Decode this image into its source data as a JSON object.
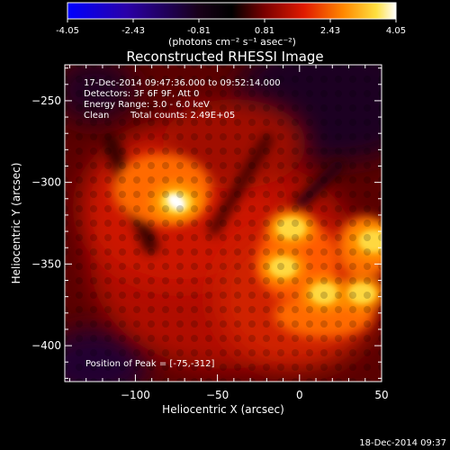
{
  "chart_data": {
    "type": "heatmap",
    "title": "Reconstructed RHESSI Image",
    "colorbar": {
      "ticks": [
        "-4.05",
        "-2.43",
        "-0.81",
        "0.81",
        "2.43",
        "4.05"
      ],
      "min": -4.05,
      "max": 4.05,
      "unit_label": "(photons cm⁻² s⁻¹ asec⁻²)",
      "colormap": "rhessi-blue-black-red-yellow-white"
    },
    "annotations": {
      "time_range": "17-Dec-2014 09:47:36.000 to 09:52:14.000",
      "detectors": "Detectors: 3F 6F 9F, Att 0",
      "energy_range": "Energy Range: 3.0 - 6.0 keV",
      "method": "Clean",
      "total_counts": "Total counts: 2.49E+05",
      "peak_position": "Position of Peak = [-75,-312]"
    },
    "xlabel": "Heliocentric X (arcsec)",
    "ylabel": "Heliocentric Y (arcsec)",
    "xlim": [
      -143,
      50
    ],
    "ylim": [
      -422,
      -228
    ],
    "xticks": [
      -100,
      -50,
      0,
      50
    ],
    "yticks": [
      -250,
      -300,
      -350,
      -400
    ],
    "xtick_labels": [
      "−100",
      "−50",
      "0",
      "50"
    ],
    "ytick_labels": [
      "−250",
      "−300",
      "−350",
      "−400"
    ],
    "sources": [
      {
        "x": -75,
        "y": -312,
        "level": 1.0
      },
      {
        "x": -5,
        "y": -328,
        "level": 0.8
      },
      {
        "x": 45,
        "y": -336,
        "level": 0.85
      },
      {
        "x": -10,
        "y": -352,
        "level": 0.7
      },
      {
        "x": 15,
        "y": -368,
        "level": 0.75
      },
      {
        "x": 38,
        "y": -368,
        "level": 0.7
      }
    ],
    "grid": false
  },
  "footer": {
    "timestamp": "18-Dec-2014 09:37"
  }
}
